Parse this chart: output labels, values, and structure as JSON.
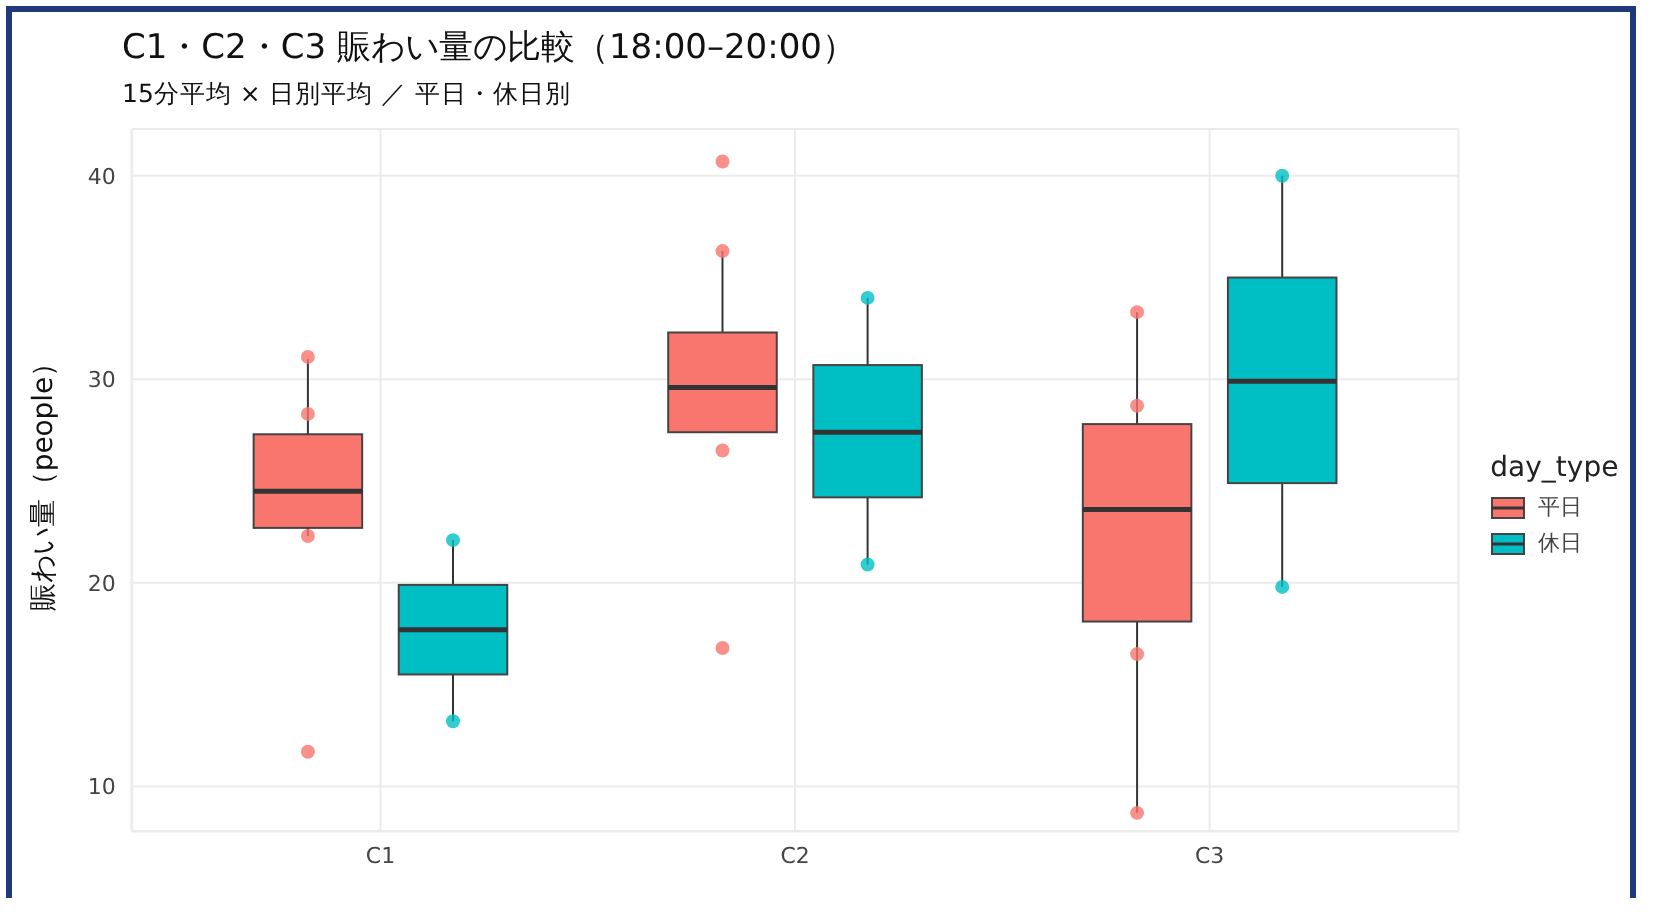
{
  "chart_data": {
    "type": "box",
    "title": "C1・C2・C3 賑わい量の比較（18:00–20:00）",
    "subtitle": "15分平均 × 日別平均 ／ 平日・休日別",
    "ylabel": "賑わい量（people）",
    "legend_title": "day_type",
    "categories": [
      "C1",
      "C2",
      "C3"
    ],
    "ylim": [
      7.8,
      42.3
    ],
    "yticks": [
      10,
      20,
      30,
      40
    ],
    "grid": true,
    "legend": "right",
    "series": [
      {
        "name": "平日",
        "color": "#f8766d",
        "boxes": [
          {
            "low": 22.3,
            "q1": 22.7,
            "median": 24.5,
            "q3": 27.3,
            "high": 31.0
          },
          {
            "low": 27.4,
            "q1": 27.4,
            "median": 29.6,
            "q3": 32.3,
            "high": 36.3
          },
          {
            "low": 8.7,
            "q1": 18.1,
            "median": 23.6,
            "q3": 27.8,
            "high": 33.3
          }
        ]
      },
      {
        "name": "休日",
        "color": "#00bfc4",
        "boxes": [
          {
            "low": 13.2,
            "q1": 15.5,
            "median": 17.7,
            "q3": 19.9,
            "high": 22.1
          },
          {
            "low": 20.9,
            "q1": 24.2,
            "median": 27.4,
            "q3": 30.7,
            "high": 34.0
          },
          {
            "low": 19.8,
            "q1": 24.9,
            "median": 29.9,
            "q3": 35.0,
            "high": 40.0
          }
        ]
      },
      {
        "type": "scatter",
        "color": "#f8766d",
        "x": [
          "C1",
          "C1",
          "C1",
          "C1",
          "C2",
          "C2",
          "C2",
          "C2",
          "C3",
          "C3",
          "C3",
          "C3"
        ],
        "values": [
          31.1,
          28.3,
          22.3,
          11.7,
          40.7,
          36.3,
          26.5,
          16.8,
          33.3,
          28.7,
          16.5,
          8.7
        ]
      },
      {
        "type": "scatter",
        "color": "#00bfc4",
        "x": [
          "C1",
          "C1",
          "C2",
          "C2",
          "C3",
          "C3"
        ],
        "values": [
          22.1,
          13.2,
          34.0,
          20.9,
          40.0,
          19.8
        ]
      }
    ]
  }
}
